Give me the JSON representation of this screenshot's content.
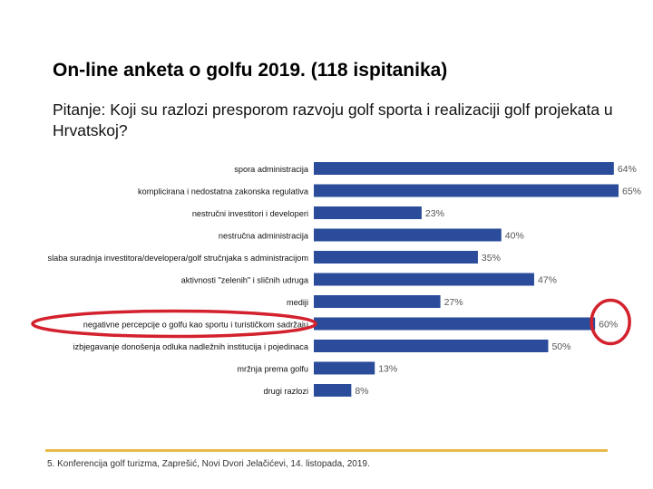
{
  "slide": {
    "title": "On-line anketa o golfu 2019. (118 ispitanika)",
    "question": "Pitanje: Koji su razlozi presporom razvoju golf sporta i realizaciji golf projekata u Hrvatskoj?",
    "footer": "5. Konferencija golf turizma, Zaprešić, Novi Dvori Jelačićevi, 14. listopada, 2019."
  },
  "colors": {
    "bar": "#2b4c9b",
    "highlight": "#d3212d",
    "footer_line": "#e8b94a"
  },
  "chart_data": {
    "type": "bar",
    "orientation": "horizontal",
    "title": "",
    "xlabel": "",
    "ylabel": "",
    "xlim": [
      0,
      65
    ],
    "value_suffix": "%",
    "categories": [
      "spora administracija",
      "komplicirana i nedostatna zakonska regulativa",
      "nestručni investitori i developeri",
      "nestručna administracija",
      "slaba suradnja investitora/developera/golf stručnjaka s administracijom",
      "aktivnosti \"zelenih\" i sličnih udruga",
      "mediji",
      "negativne percepcije o golfu kao sportu i turističkom sadržaju",
      "izbjegavanje donošenja odluka nadležnih institucija i pojedinaca",
      "mržnja prema golfu",
      "drugi razlozi"
    ],
    "values": [
      64,
      65,
      23,
      40,
      35,
      47,
      27,
      60,
      50,
      13,
      8
    ],
    "highlighted_index": 7
  }
}
